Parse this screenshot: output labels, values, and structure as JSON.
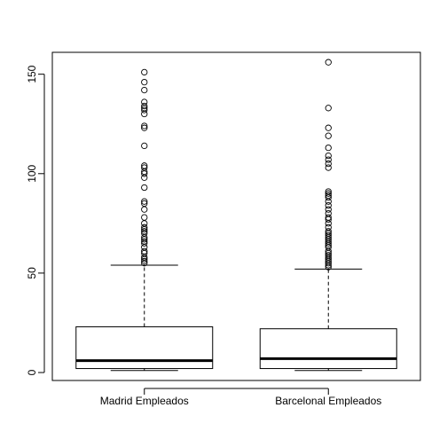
{
  "chart_data": {
    "type": "box",
    "title": "",
    "xlabel": "",
    "ylabel": "",
    "ylim": [
      -4,
      161
    ],
    "yticks": [
      0,
      50,
      100,
      150
    ],
    "grid": false,
    "categories": [
      "Madrid Empleados",
      "Barcelonal Empleados"
    ],
    "series": [
      {
        "whisker_low": 1,
        "q1": 2,
        "median": 6,
        "q3": 23,
        "whisker_high": 54,
        "outliers": [
          55,
          56,
          57,
          58,
          60,
          61,
          63,
          65,
          66,
          67,
          68,
          70,
          71,
          72,
          73,
          75,
          78,
          82,
          85,
          86,
          93,
          98,
          100,
          101,
          103,
          104,
          114,
          123,
          124,
          130,
          132,
          133,
          134,
          136,
          142,
          146,
          151
        ]
      },
      {
        "whisker_low": 1,
        "q1": 2,
        "median": 7,
        "q3": 22,
        "whisker_high": 52,
        "outliers": [
          53,
          54,
          55,
          56,
          57,
          58,
          59,
          60,
          61,
          63,
          64,
          65,
          66,
          67,
          68,
          69,
          70,
          71,
          73,
          75,
          77,
          78,
          80,
          82,
          84,
          86,
          88,
          89,
          90,
          91,
          103,
          105,
          107,
          109,
          113,
          119,
          123,
          133,
          156
        ]
      }
    ]
  }
}
